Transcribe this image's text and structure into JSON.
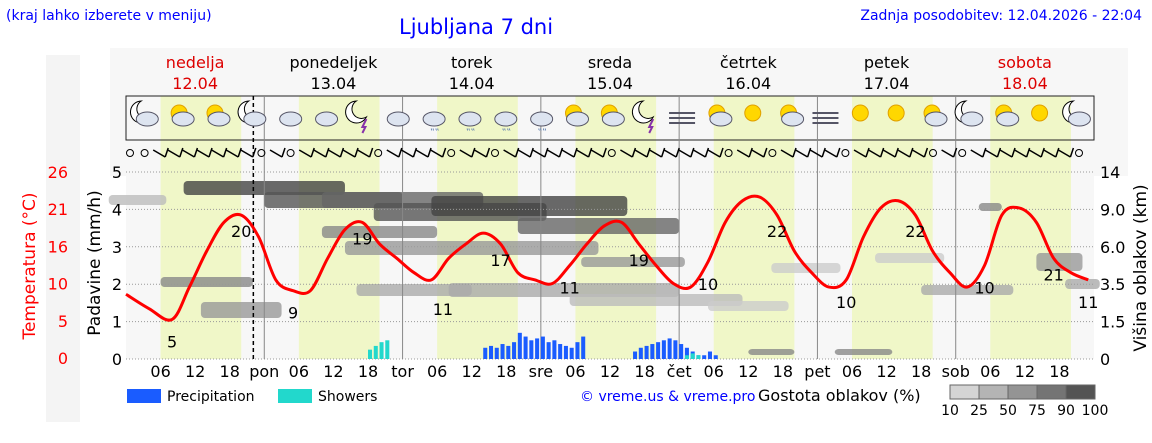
{
  "header": {
    "left_note": "(kraj lahko izberete v meniju)",
    "title": "Ljubljana 7 dni",
    "updated": "Zadnja posodobitev: 12.04.2026 - 22:04"
  },
  "days": [
    {
      "name": "nedelja",
      "date": "12.04",
      "weekend": true
    },
    {
      "name": "ponedeljek",
      "date": "13.04",
      "weekend": false
    },
    {
      "name": "torek",
      "date": "14.04",
      "weekend": false
    },
    {
      "name": "sreda",
      "date": "15.04",
      "weekend": false
    },
    {
      "name": "četrtek",
      "date": "16.04",
      "weekend": false
    },
    {
      "name": "petek",
      "date": "17.04",
      "weekend": false
    },
    {
      "name": "sobota",
      "date": "18.04",
      "weekend": true
    }
  ],
  "x_ticks": [
    "06",
    "12",
    "18",
    "pon",
    "06",
    "12",
    "18",
    "tor",
    "06",
    "12",
    "18",
    "sre",
    "06",
    "12",
    "18",
    "čet",
    "06",
    "12",
    "18",
    "pet",
    "06",
    "12",
    "18",
    "sob",
    "06",
    "12",
    "18"
  ],
  "axes": {
    "temp_label": "Temperatura (°C)",
    "temp_ticks": [
      "26",
      "21",
      "16",
      "10",
      "5",
      "0"
    ],
    "precip_label": "Padavine (mm/h)",
    "precip_ticks": [
      "5",
      "4",
      "3",
      "2",
      "1",
      "0"
    ],
    "cloud_label": "Višina oblakov (km)",
    "cloud_ticks": [
      "14",
      "9.0",
      "6.0",
      "3.5",
      "1.5",
      "0"
    ]
  },
  "legend": {
    "precip": "Precipitation",
    "showers": "Showers",
    "credit": "© vreme.us & vreme.pro",
    "density_title": "Gostota oblakov (%)",
    "density_ticks": [
      "10",
      "25",
      "50",
      "75",
      "90",
      "100"
    ]
  },
  "colors": {
    "temp_line": "#ff0000",
    "precip": "#1a5cff",
    "showers": "#22d8cc",
    "day_band": "#f0f7c8",
    "weekend_text": "#dd0000",
    "title": "#0000ff"
  },
  "chart_data": {
    "type": "line",
    "title": "Ljubljana 7 dni",
    "x_unit": "hour from 12.04 00:00",
    "ylabel": "Temperatura (°C)",
    "ylim": [
      0,
      26
    ],
    "series": [],
    "temperature": {
      "x": [
        0,
        4,
        8,
        11,
        14,
        17,
        20,
        23,
        26,
        29,
        32,
        35,
        38,
        41,
        44,
        47,
        50,
        53,
        56,
        59,
        62,
        65,
        68,
        71,
        74,
        77,
        80,
        83,
        86,
        89,
        92,
        95,
        98,
        101,
        104,
        107,
        110,
        113,
        116,
        119,
        122,
        125,
        128,
        131,
        134,
        137,
        140,
        143,
        146,
        149,
        152,
        155,
        158,
        161,
        164,
        167
      ],
      "y": [
        9,
        7,
        5.5,
        10,
        15,
        19,
        20,
        17,
        11,
        9.5,
        9.5,
        14,
        18,
        19,
        16,
        14,
        12,
        11,
        14,
        16,
        17.5,
        16,
        12,
        11,
        10.5,
        13,
        16,
        18.5,
        19,
        16,
        13,
        10.5,
        10,
        13.5,
        19,
        22,
        22.5,
        20,
        15,
        12,
        10,
        11,
        17,
        21,
        22,
        20,
        15,
        12,
        10,
        13,
        20,
        21,
        19,
        14,
        12,
        11
      ],
      "labels": [
        {
          "x": 8,
          "v": "5"
        },
        {
          "x": 20,
          "v": "20"
        },
        {
          "x": 29,
          "v": "9"
        },
        {
          "x": 41,
          "v": "19"
        },
        {
          "x": 55,
          "v": "11"
        },
        {
          "x": 65,
          "v": "17"
        },
        {
          "x": 77,
          "v": "11"
        },
        {
          "x": 89,
          "v": "19"
        },
        {
          "x": 101,
          "v": "10"
        },
        {
          "x": 113,
          "v": "22"
        },
        {
          "x": 125,
          "v": "10"
        },
        {
          "x": 137,
          "v": "22"
        },
        {
          "x": 149,
          "v": "10"
        },
        {
          "x": 161,
          "v": "21"
        },
        {
          "x": 167,
          "v": "11"
        }
      ]
    },
    "precipitation": {
      "unit": "mm/h",
      "x": [
        62,
        63,
        64,
        65,
        66,
        67,
        68,
        69,
        70,
        71,
        72,
        73,
        74,
        75,
        76,
        77,
        78,
        79,
        88,
        89,
        90,
        91,
        92,
        93,
        94,
        95,
        96,
        97,
        98,
        99,
        100,
        101,
        102
      ],
      "y": [
        0.3,
        0.35,
        0.3,
        0.4,
        0.35,
        0.45,
        0.7,
        0.6,
        0.5,
        0.55,
        0.6,
        0.45,
        0.5,
        0.4,
        0.35,
        0.3,
        0.45,
        0.6,
        0.2,
        0.3,
        0.35,
        0.4,
        0.45,
        0.5,
        0.55,
        0.5,
        0.4,
        0.3,
        0.2,
        0.1,
        0.1,
        0.2,
        0.1
      ]
    },
    "showers": {
      "unit": "mm/h",
      "x": [
        42,
        43,
        44,
        45,
        97,
        98,
        99
      ],
      "y": [
        0.25,
        0.35,
        0.45,
        0.5,
        0.1,
        0.15,
        0.1
      ]
    }
  },
  "icons": [
    "moon-cloud-icon",
    "sun-cloud-icon",
    "sun-cloud-icon",
    "moon-cloud-icon",
    "cloud-icon",
    "cloud-icon",
    "moon-storm-icon",
    "cloud-icon",
    "cloud-rain-icon",
    "cloud-rain-icon",
    "cloud-rain-icon",
    "cloud-rain-icon",
    "sun-cloud-icon",
    "sun-cloud-icon",
    "moon-storm-icon",
    "fog-icon",
    "sun-cloud-icon",
    "sun-icon",
    "sun-cloud-icon",
    "fog-icon",
    "sun-icon",
    "sun-icon",
    "sun-cloud-icon",
    "moon-cloud-icon",
    "sun-cloud-icon",
    "sun-icon",
    "moon-cloud-icon"
  ]
}
